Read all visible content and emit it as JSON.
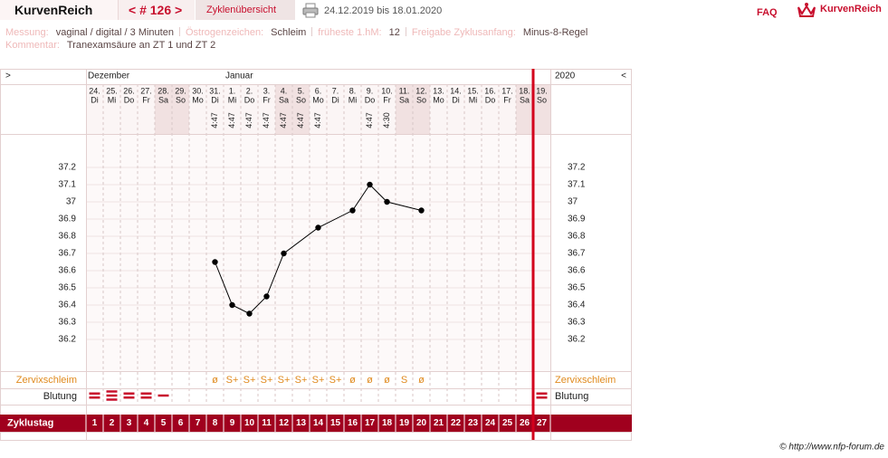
{
  "header": {
    "logo": "KurvenReich",
    "cycle_nav": "< # 126 >",
    "overview": "Zyklenübersicht",
    "date_range": "24.12.2019 bis 18.01.2020",
    "faq": "FAQ",
    "brand": "KurvenReich"
  },
  "info": {
    "rows": [
      [
        {
          "label": "Messung:",
          "value": "vaginal / digital / 3 Minuten"
        },
        {
          "label": "Östrogenzeichen:",
          "value": "Schleim"
        },
        {
          "label": "früheste 1.hM:",
          "value": "12"
        },
        {
          "label": "Freigabe Zyklusanfang:",
          "value": "Minus-8-Regel"
        }
      ],
      [
        {
          "label": "Kommentar:",
          "value": "Tranexamsäure an ZT 1 und ZT 2"
        }
      ]
    ]
  },
  "calendar": {
    "nav_next": ">",
    "nav_prev": "<",
    "months": [
      "Dezember",
      "Januar"
    ],
    "year": "2020",
    "dates": [
      "24.",
      "25.",
      "26.",
      "27.",
      "28.",
      "29.",
      "30.",
      "31.",
      "1.",
      "2.",
      "3.",
      "4.",
      "5.",
      "6.",
      "7.",
      "8.",
      "9.",
      "10.",
      "11.",
      "12.",
      "13.",
      "14.",
      "15.",
      "16.",
      "17.",
      "18.",
      "19."
    ],
    "weekdays": [
      "Di",
      "Mi",
      "Do",
      "Fr",
      "Sa",
      "So",
      "Mo",
      "Di",
      "Mi",
      "Do",
      "Fr",
      "Sa",
      "So",
      "Mo",
      "Di",
      "Mi",
      "Do",
      "Fr",
      "Sa",
      "So",
      "Mo",
      "Di",
      "Mi",
      "Do",
      "Fr",
      "Sa",
      "So"
    ],
    "shaded_days": [
      5,
      6,
      12,
      13,
      19,
      20,
      26,
      27
    ],
    "times": [
      null,
      null,
      null,
      null,
      null,
      null,
      null,
      "4:47",
      "4:47",
      "4:47",
      "4:47",
      "4:47",
      "4:47",
      "4:47",
      null,
      null,
      "4:47",
      "4:30",
      null,
      null,
      null,
      null,
      null,
      null,
      null,
      null,
      null
    ],
    "cervical": [
      null,
      null,
      null,
      null,
      null,
      null,
      null,
      "ø",
      "S+",
      "S+",
      "S+",
      "S+",
      "S+",
      "S+",
      "S+",
      "ø",
      "ø",
      "ø",
      "S",
      "ø",
      null,
      null,
      null,
      null,
      null,
      null,
      null
    ],
    "bleeding": [
      2,
      3,
      2,
      2,
      1,
      null,
      null,
      null,
      null,
      null,
      null,
      null,
      null,
      null,
      null,
      null,
      null,
      null,
      null,
      null,
      null,
      null,
      null,
      null,
      null,
      null,
      2
    ],
    "labels": {
      "cervical": "Zervixschleim",
      "bleeding": "Blutung",
      "cycle_day": "Zyklustag"
    },
    "current_day": 27
  },
  "chart_data": {
    "type": "line",
    "color": "#000000",
    "x": [
      8,
      9,
      10,
      11,
      12,
      14,
      16,
      17,
      18,
      20
    ],
    "values": [
      36.65,
      36.4,
      36.35,
      36.45,
      36.7,
      36.85,
      36.95,
      37.1,
      37.0,
      36.95
    ],
    "xlim": [
      0.5,
      27.5
    ],
    "xticks": [
      1,
      2,
      3,
      4,
      5,
      6,
      7,
      8,
      9,
      10,
      11,
      12,
      13,
      14,
      15,
      16,
      17,
      18,
      19,
      20,
      21,
      22,
      23,
      24,
      25,
      26,
      27
    ],
    "ylim": [
      36.0,
      37.4
    ],
    "yticks": [
      36.2,
      36.3,
      36.4,
      36.5,
      36.6,
      36.7,
      36.8,
      36.9,
      37,
      37.1,
      37.2
    ],
    "grid": true
  },
  "footer": {
    "copyright": "© http://www.nfp-forum.de"
  }
}
